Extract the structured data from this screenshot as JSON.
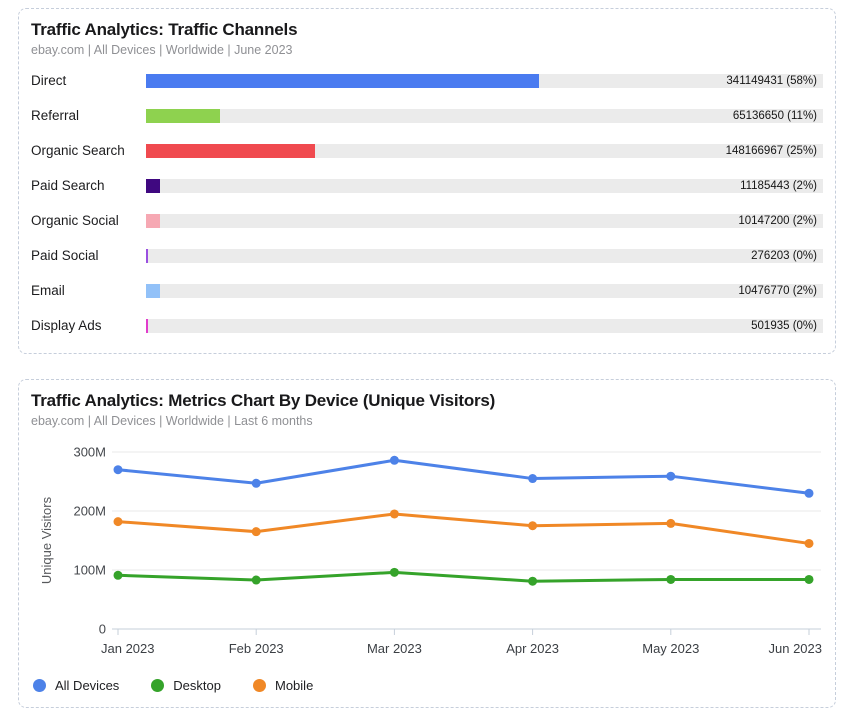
{
  "channels_panel": {
    "title": "Traffic Analytics: Traffic Channels",
    "subtitle": "ebay.com | All Devices | Worldwide | June 2023"
  },
  "metrics_panel": {
    "title": "Traffic Analytics: Metrics Chart By Device (Unique Visitors)",
    "subtitle": "ebay.com | All Devices | Worldwide | Last 6 months"
  },
  "chart_data": [
    {
      "type": "bar",
      "orientation": "horizontal",
      "title": "Traffic Analytics: Traffic Channels",
      "categories": [
        "Direct",
        "Referral",
        "Organic Search",
        "Paid Search",
        "Organic Social",
        "Paid Social",
        "Email",
        "Display Ads"
      ],
      "values": [
        341149431,
        65136650,
        148166967,
        11185443,
        10147200,
        276203,
        10476770,
        501935
      ],
      "percents": [
        58,
        11,
        25,
        2,
        2,
        0,
        2,
        0
      ],
      "colors": [
        "#4a7bf0",
        "#8ed24f",
        "#f04a4f",
        "#3f0880",
        "#f6a8b3",
        "#9a4fe0",
        "#92c1f8",
        "#e13ccc"
      ],
      "track_color": "#ebebeb",
      "xlim_percent": [
        0,
        100
      ]
    },
    {
      "type": "line",
      "title": "Traffic Analytics: Metrics Chart By Device (Unique Visitors)",
      "x": [
        "Jan 2023",
        "Feb 2023",
        "Mar 2023",
        "Apr 2023",
        "May 2023",
        "Jun 2023"
      ],
      "series": [
        {
          "name": "All Devices",
          "color": "#4d82e8",
          "values_millions": [
            270,
            247,
            286,
            255,
            259,
            230
          ]
        },
        {
          "name": "Desktop",
          "color": "#35a32a",
          "values_millions": [
            91,
            83,
            96,
            81,
            84,
            84
          ]
        },
        {
          "name": "Mobile",
          "color": "#f08826",
          "values_millions": [
            182,
            165,
            195,
            175,
            179,
            145
          ]
        }
      ],
      "ylabel": "Unique Visitors",
      "ylim_millions": [
        0,
        300
      ],
      "yticks_millions": [
        0,
        100,
        200,
        300
      ],
      "ytick_labels": [
        "0",
        "100M",
        "200M",
        "300M"
      ],
      "grid": true,
      "legend_position": "bottom-left"
    }
  ]
}
